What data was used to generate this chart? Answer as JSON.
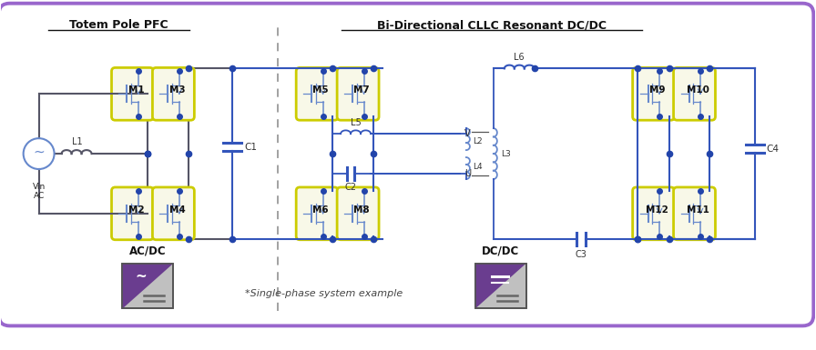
{
  "bg_color": "#ffffff",
  "outer_border_color": "#9966cc",
  "wire_blue": "#3355bb",
  "wire_blue_light": "#6688cc",
  "wire_gray": "#555566",
  "mosfet_edge": "#cccc00",
  "mosfet_face": "#f8f8e8",
  "section_title_left": "Totem Pole PFC",
  "section_title_right": "Bi-Directional CLLC Resonant DC/DC",
  "footer_text": "*Single-phase system example",
  "purple": "#6a3d8f",
  "light_gray": "#c0c0c0",
  "dot_color": "#2244aa"
}
